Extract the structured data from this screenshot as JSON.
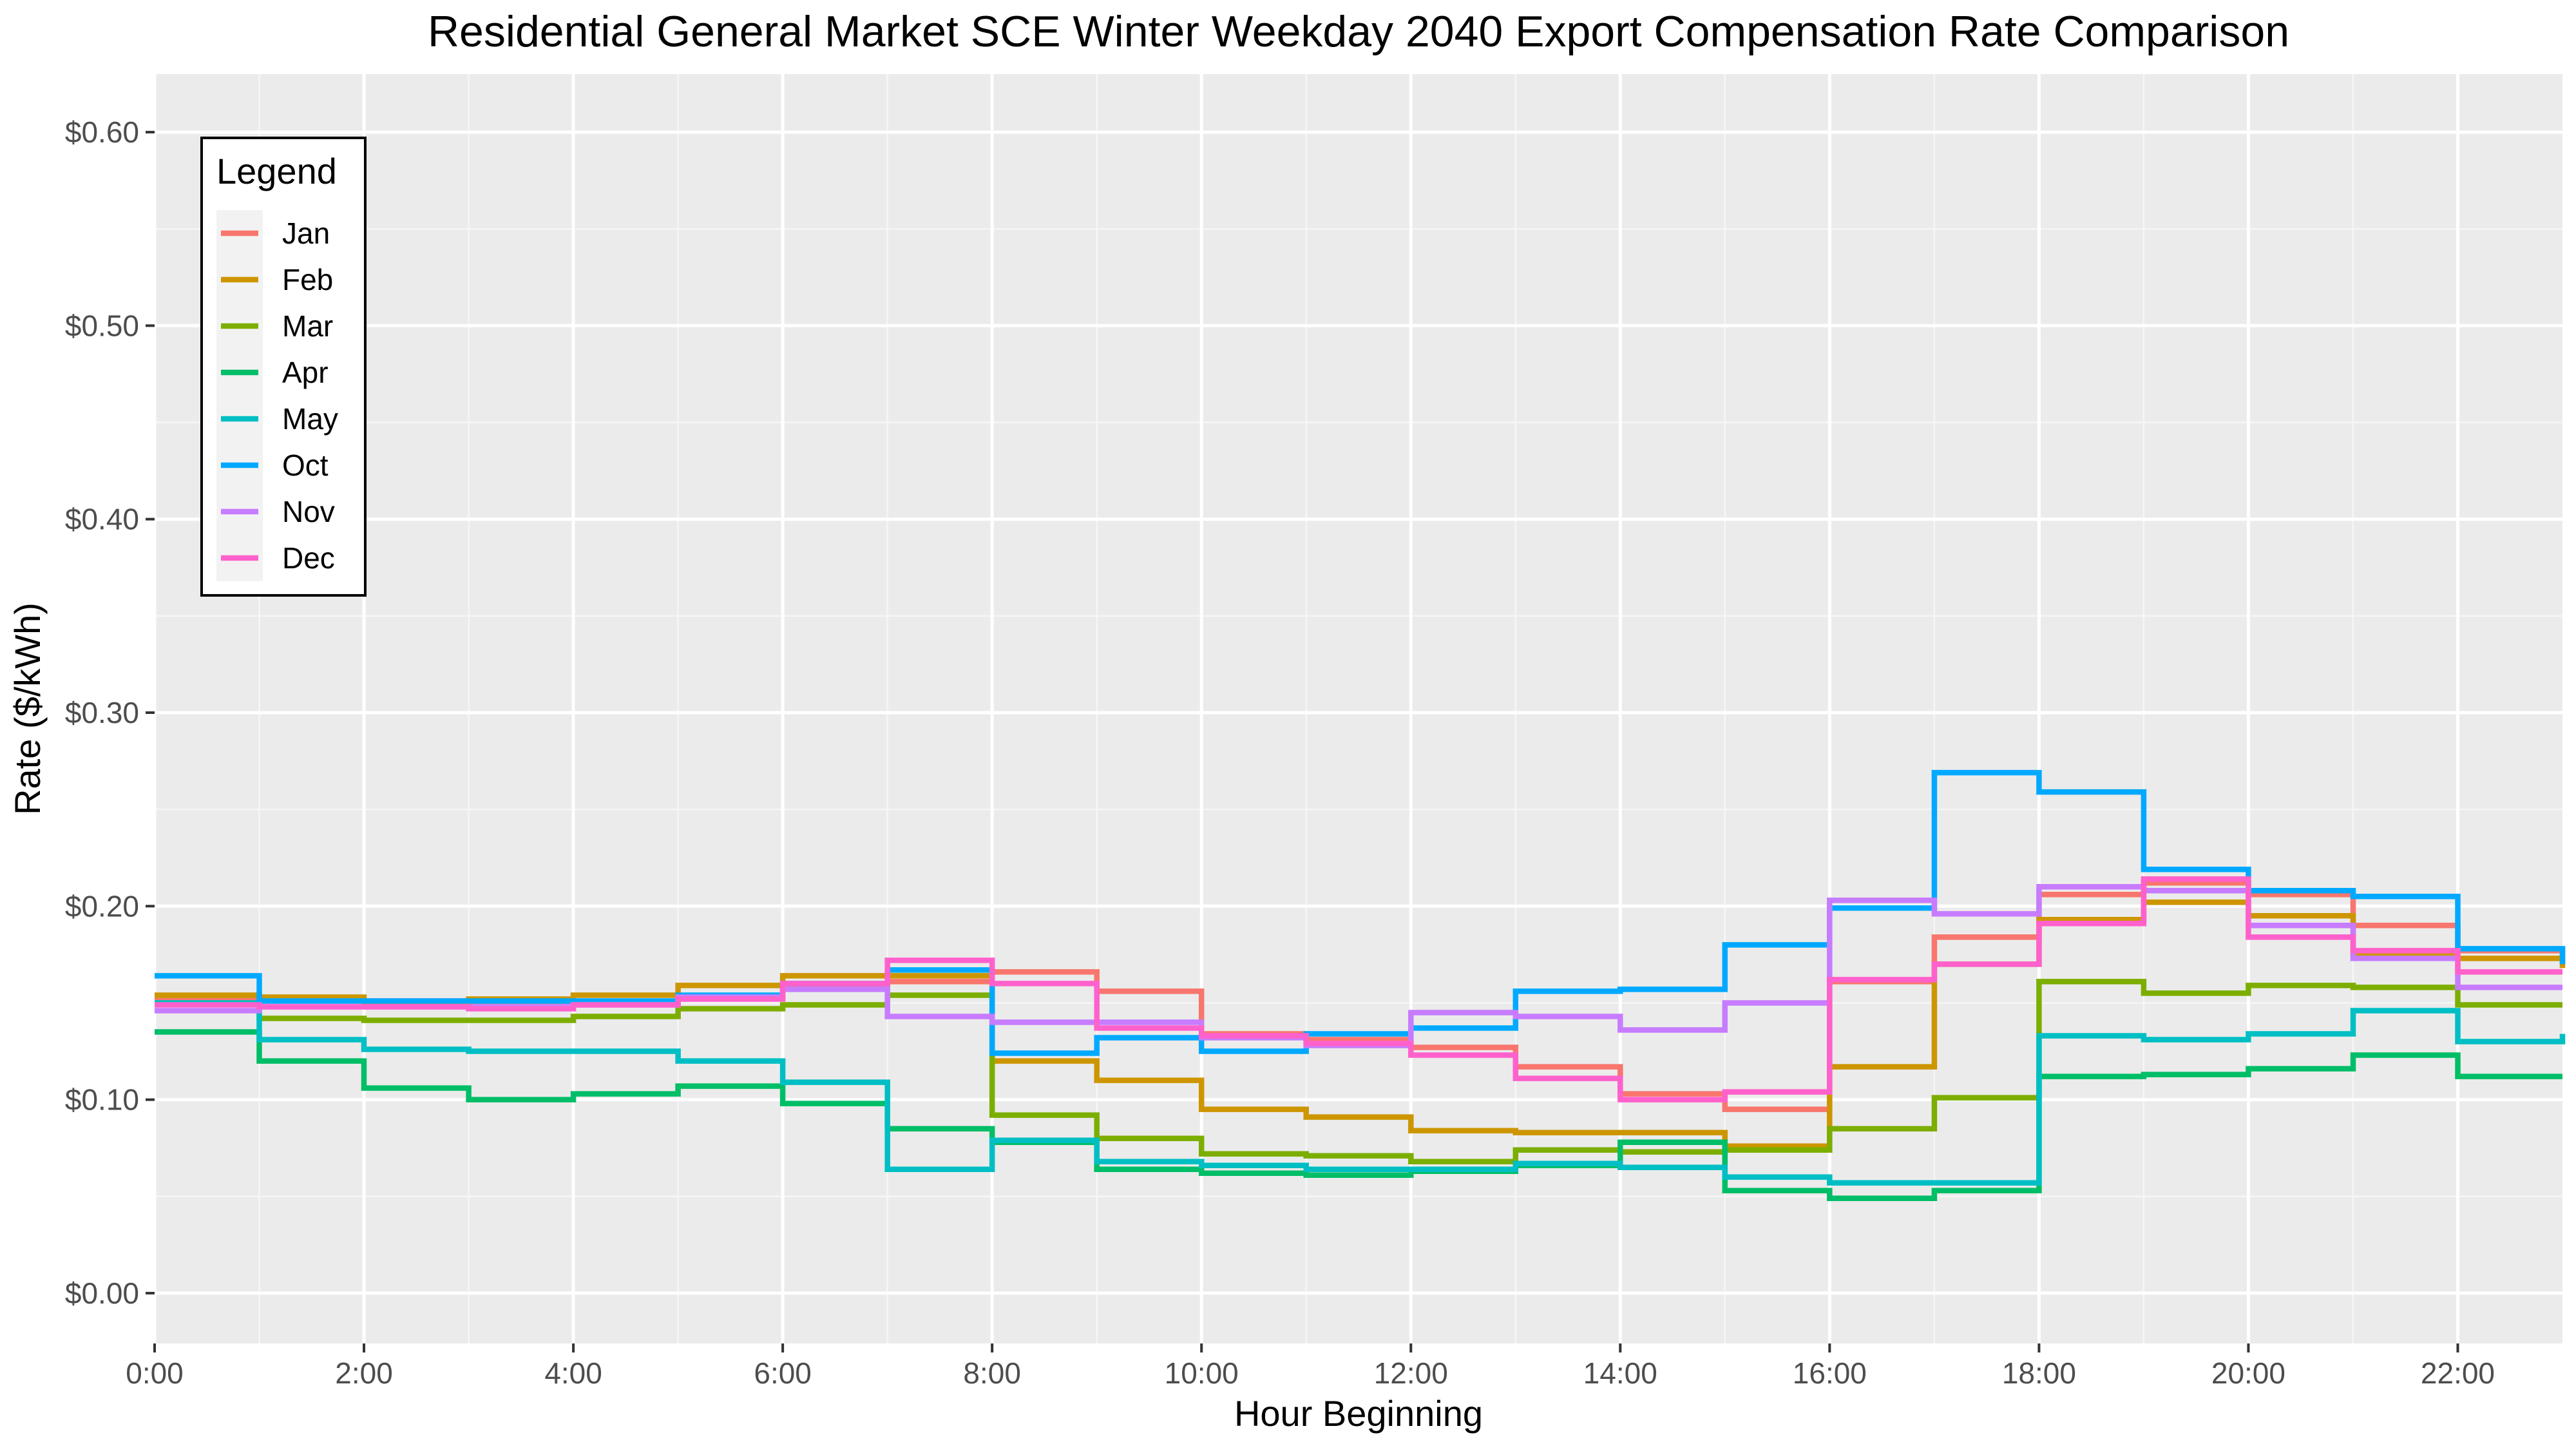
{
  "chart_data": {
    "type": "line",
    "step": true,
    "title": "Residential General Market SCE Winter Weekday 2040 Export Compensation Rate Comparison",
    "xlabel": "Hour Beginning",
    "ylabel": "Rate ($/kWh)",
    "xlim": [
      0,
      23
    ],
    "ylim": [
      -0.026,
      0.63
    ],
    "x": [
      0,
      1,
      2,
      3,
      4,
      5,
      6,
      7,
      8,
      9,
      10,
      11,
      12,
      13,
      14,
      15,
      16,
      17,
      18,
      19,
      20,
      21,
      22,
      23
    ],
    "x_ticks": [
      {
        "value": 0,
        "label": "0:00"
      },
      {
        "value": 2,
        "label": "2:00"
      },
      {
        "value": 4,
        "label": "4:00"
      },
      {
        "value": 6,
        "label": "6:00"
      },
      {
        "value": 8,
        "label": "8:00"
      },
      {
        "value": 10,
        "label": "10:00"
      },
      {
        "value": 12,
        "label": "12:00"
      },
      {
        "value": 14,
        "label": "14:00"
      },
      {
        "value": 16,
        "label": "16:00"
      },
      {
        "value": 18,
        "label": "18:00"
      },
      {
        "value": 20,
        "label": "20:00"
      },
      {
        "value": 22,
        "label": "22:00"
      }
    ],
    "y_ticks": [
      {
        "value": 0.0,
        "label": "$0.00"
      },
      {
        "value": 0.1,
        "label": "$0.10"
      },
      {
        "value": 0.2,
        "label": "$0.20"
      },
      {
        "value": 0.3,
        "label": "$0.30"
      },
      {
        "value": 0.4,
        "label": "$0.40"
      },
      {
        "value": 0.5,
        "label": "$0.50"
      },
      {
        "value": 0.6,
        "label": "$0.60"
      }
    ],
    "grid": true,
    "legend": {
      "title": "Legend",
      "placement": "top-left"
    },
    "series": [
      {
        "name": "Jan",
        "color": "#F8766D",
        "values": [
          0.152,
          0.151,
          0.151,
          0.15,
          0.15,
          0.153,
          0.158,
          0.161,
          0.166,
          0.156,
          0.134,
          0.131,
          0.127,
          0.117,
          0.103,
          0.095,
          0.161,
          0.184,
          0.206,
          0.212,
          0.206,
          0.19,
          0.177,
          0.17
        ]
      },
      {
        "name": "Feb",
        "color": "#CD9600",
        "values": [
          0.154,
          0.153,
          0.15,
          0.152,
          0.154,
          0.159,
          0.164,
          0.164,
          0.12,
          0.11,
          0.095,
          0.091,
          0.084,
          0.083,
          0.083,
          0.076,
          0.117,
          0.17,
          0.193,
          0.202,
          0.195,
          0.175,
          0.173,
          0.168
        ]
      },
      {
        "name": "Mar",
        "color": "#7CAE00",
        "values": [
          0.15,
          0.142,
          0.141,
          0.141,
          0.143,
          0.147,
          0.149,
          0.154,
          0.092,
          0.08,
          0.072,
          0.071,
          0.068,
          0.074,
          0.073,
          0.074,
          0.085,
          0.101,
          0.161,
          0.155,
          0.159,
          0.158,
          0.149,
          0.149
        ]
      },
      {
        "name": "Apr",
        "color": "#00BE67",
        "values": [
          0.135,
          0.12,
          0.106,
          0.1,
          0.103,
          0.107,
          0.098,
          0.085,
          0.078,
          0.064,
          0.062,
          0.061,
          0.063,
          0.066,
          0.078,
          0.053,
          0.049,
          0.053,
          0.112,
          0.113,
          0.116,
          0.123,
          0.112,
          0.112
        ]
      },
      {
        "name": "May",
        "color": "#00BFC4",
        "values": [
          0.15,
          0.131,
          0.126,
          0.125,
          0.125,
          0.12,
          0.109,
          0.064,
          0.079,
          0.068,
          0.066,
          0.064,
          0.064,
          0.067,
          0.065,
          0.06,
          0.057,
          0.057,
          0.133,
          0.131,
          0.134,
          0.146,
          0.13,
          0.134
        ]
      },
      {
        "name": "Oct",
        "color": "#00A9FF",
        "values": [
          0.164,
          0.151,
          0.151,
          0.151,
          0.151,
          0.154,
          0.16,
          0.167,
          0.124,
          0.132,
          0.125,
          0.134,
          0.137,
          0.156,
          0.157,
          0.18,
          0.199,
          0.269,
          0.259,
          0.219,
          0.208,
          0.205,
          0.178,
          0.17
        ]
      },
      {
        "name": "Nov",
        "color": "#C77CFF",
        "values": [
          0.146,
          0.148,
          0.148,
          0.148,
          0.149,
          0.153,
          0.157,
          0.143,
          0.14,
          0.14,
          0.132,
          0.128,
          0.145,
          0.143,
          0.136,
          0.15,
          0.203,
          0.196,
          0.21,
          0.208,
          0.19,
          0.173,
          0.158,
          0.158
        ]
      },
      {
        "name": "Dec",
        "color": "#FF61CC",
        "values": [
          0.149,
          0.148,
          0.148,
          0.147,
          0.149,
          0.152,
          0.16,
          0.172,
          0.16,
          0.137,
          0.133,
          0.129,
          0.123,
          0.111,
          0.1,
          0.104,
          0.162,
          0.17,
          0.191,
          0.214,
          0.184,
          0.177,
          0.166,
          0.166
        ]
      }
    ]
  }
}
